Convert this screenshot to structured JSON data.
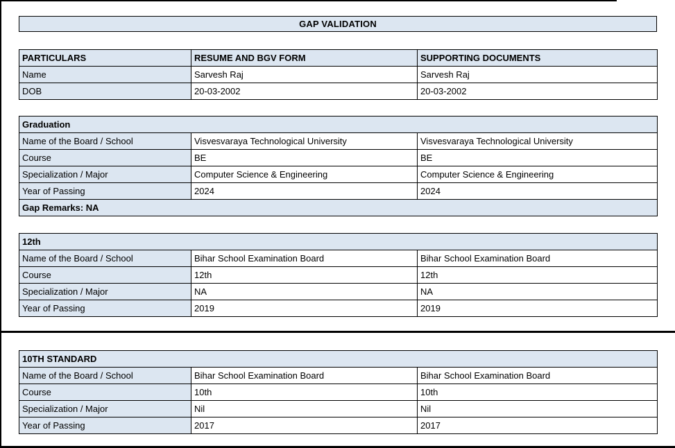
{
  "page": {
    "title": "GAP VALIDATION"
  },
  "colors": {
    "shaded_cell_bg": "#dce6f1",
    "border": "#000000",
    "text": "#000000"
  },
  "particulars": {
    "headers": [
      "PARTICULARS",
      "RESUME AND BGV FORM",
      "SUPPORTING DOCUMENTS"
    ],
    "rows": [
      {
        "label": "Name",
        "resume": "Sarvesh Raj",
        "supporting": "Sarvesh Raj"
      },
      {
        "label": "DOB",
        "resume": "20-03-2002",
        "supporting": "20-03-2002"
      }
    ]
  },
  "sections": [
    {
      "heading": "Graduation",
      "rows": [
        {
          "label": "Name of the Board / School",
          "resume": "Visvesvaraya Technological University",
          "supporting": "Visvesvaraya Technological University"
        },
        {
          "label": "Course",
          "resume": "BE",
          "supporting": "BE"
        },
        {
          "label": "Specialization / Major",
          "resume": "Computer Science & Engineering",
          "supporting": "Computer Science & Engineering"
        },
        {
          "label": "Year of Passing",
          "resume": "2024",
          "supporting": "2024"
        }
      ],
      "footer": "Gap Remarks: NA"
    },
    {
      "heading": "12th",
      "rows": [
        {
          "label": "Name of the Board / School",
          "resume": "Bihar School Examination Board",
          "supporting": "Bihar School Examination Board"
        },
        {
          "label": "Course",
          "resume": "12th",
          "supporting": "12th"
        },
        {
          "label": "Specialization / Major",
          "resume": "NA",
          "supporting": "NA"
        },
        {
          "label": "Year of Passing",
          "resume": "2019",
          "supporting": "2019"
        }
      ]
    },
    {
      "heading": "10TH STANDARD",
      "rows": [
        {
          "label": "Name of the Board / School",
          "resume": "Bihar School Examination Board",
          "supporting": "Bihar School Examination Board"
        },
        {
          "label": "Course",
          "resume": "10th",
          "supporting": "10th"
        },
        {
          "label": "Specialization / Major",
          "resume": "Nil",
          "supporting": "Nil"
        },
        {
          "label": "Year of Passing",
          "resume": "2017",
          "supporting": "2017"
        }
      ]
    }
  ]
}
